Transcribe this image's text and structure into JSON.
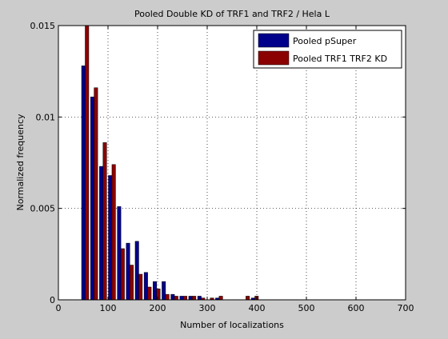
{
  "chart_data": {
    "type": "bar",
    "title": "Pooled Double KD of TRF1 and TRF2 / Hela L",
    "xlabel": "Number of localizations",
    "ylabel": "Normalized frequency",
    "xlim": [
      0,
      700
    ],
    "ylim": [
      0,
      0.015
    ],
    "xticks": [
      0,
      100,
      200,
      300,
      400,
      500,
      600,
      700
    ],
    "xtick_labels": [
      "0",
      "100",
      "200",
      "300",
      "400",
      "500",
      "600",
      "700"
    ],
    "yticks": [
      0,
      0.005,
      0.01,
      0.015
    ],
    "ytick_labels": [
      "0",
      "0.005",
      "0.01",
      "0.015"
    ],
    "grid": true,
    "legend_position": "top-right",
    "bin_width": 18,
    "x": [
      54,
      72,
      90,
      108,
      126,
      144,
      162,
      180,
      198,
      216,
      234,
      252,
      270,
      288,
      306,
      324,
      342,
      360,
      378,
      396
    ],
    "series": [
      {
        "name": "Pooled pSuper",
        "color": "#00008b",
        "values": [
          0.0128,
          0.0111,
          0.0073,
          0.0068,
          0.0051,
          0.0031,
          0.0032,
          0.0015,
          0.001,
          0.001,
          0.0003,
          0.0002,
          0.0002,
          0.0002,
          0.0,
          0.0001,
          0.0,
          0.0,
          0.0,
          0.0001
        ]
      },
      {
        "name": "Pooled TRF1 TRF2 KD",
        "color": "#8b0000",
        "values": [
          0.015,
          0.0116,
          0.0086,
          0.0074,
          0.0028,
          0.0019,
          0.0014,
          0.0007,
          0.0006,
          0.0003,
          0.0002,
          0.0002,
          0.0002,
          0.0001,
          0.0001,
          0.0002,
          0.0,
          0.0,
          0.0002,
          0.0002
        ]
      }
    ]
  }
}
